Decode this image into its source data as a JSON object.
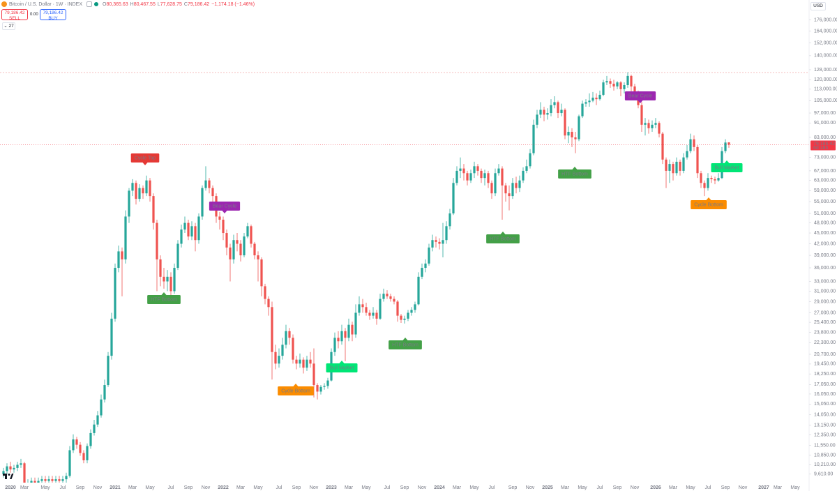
{
  "header": {
    "symbol": "Bitcoin / U.S. Dollar · 1W · INDEX",
    "ohlc": [
      {
        "key": "O",
        "value": "80,365.63"
      },
      {
        "key": "H",
        "value": "80,467.55"
      },
      {
        "key": "L",
        "value": "77,628.75"
      },
      {
        "key": "C",
        "value": "79,186.42"
      }
    ],
    "change": "−1,174.18 (−1.46%)"
  },
  "trade": {
    "sell_price": "79,186.42",
    "sell": "SELL",
    "spread": "0.00",
    "buy_price": "79,186.42",
    "buy": "BUY"
  },
  "indicators": "27",
  "currency": "USD",
  "chart_data": {
    "type": "candlestick",
    "log_scale": true,
    "grid": false,
    "up_color": "#26a69a",
    "down_color": "#ef5350",
    "last_price_label": "79,186.42",
    "countdown": "6d 18h",
    "ylim": [
      9100,
      200000
    ],
    "yticks": [
      {
        "value": 176000,
        "label": "176,000.00"
      },
      {
        "value": 164000,
        "label": "164,000.00"
      },
      {
        "value": 152000,
        "label": "152,000.00"
      },
      {
        "value": 140000,
        "label": "140,000.00"
      },
      {
        "value": 128000,
        "label": "128,000.00"
      },
      {
        "value": 120000,
        "label": "120,000.00"
      },
      {
        "value": 113000,
        "label": "113,000.00"
      },
      {
        "value": 105000,
        "label": "105,000.00"
      },
      {
        "value": 97000,
        "label": "97,000.00"
      },
      {
        "value": 91000,
        "label": "91,000.00"
      },
      {
        "value": 83000,
        "label": "83,000.00"
      },
      {
        "value": 73000,
        "label": "73,000.00"
      },
      {
        "value": 67000,
        "label": "67,000.00"
      },
      {
        "value": 63000,
        "label": "63,000.00"
      },
      {
        "value": 59000,
        "label": "59,000.00"
      },
      {
        "value": 55000,
        "label": "55,000.00"
      },
      {
        "value": 51000,
        "label": "51,000.00"
      },
      {
        "value": 48000,
        "label": "48,000.00"
      },
      {
        "value": 45000,
        "label": "45,000.00"
      },
      {
        "value": 42000,
        "label": "42,000.00"
      },
      {
        "value": 39000,
        "label": "39,000.00"
      },
      {
        "value": 36000,
        "label": "36,000.00"
      },
      {
        "value": 33000,
        "label": "33,000.00"
      },
      {
        "value": 31000,
        "label": "31,000.00"
      },
      {
        "value": 29000,
        "label": "29,000.00"
      },
      {
        "value": 27000,
        "label": "27,000.00"
      },
      {
        "value": 25400,
        "label": "25,400.00"
      },
      {
        "value": 23800,
        "label": "23,800.00"
      },
      {
        "value": 22300,
        "label": "22,300.00"
      },
      {
        "value": 20700,
        "label": "20,700.00"
      },
      {
        "value": 19450,
        "label": "19,450.00"
      },
      {
        "value": 18250,
        "label": "18,250.00"
      },
      {
        "value": 17050,
        "label": "17,050.00"
      },
      {
        "value": 16050,
        "label": "16,050.00"
      },
      {
        "value": 15050,
        "label": "15,050.00"
      },
      {
        "value": 14050,
        "label": "14,050.00"
      },
      {
        "value": 13150,
        "label": "13,150.00"
      },
      {
        "value": 12350,
        "label": "12,350.00"
      },
      {
        "value": 11550,
        "label": "11,550.00"
      },
      {
        "value": 10850,
        "label": "10,850.00"
      },
      {
        "value": 10210,
        "label": "10,210.00"
      },
      {
        "value": 9610,
        "label": "9,610.00"
      }
    ],
    "categories": [
      null,
      null,
      "2020",
      null,
      null,
      null,
      "Mar",
      null,
      null,
      null,
      null,
      null,
      "May",
      null,
      null,
      null,
      null,
      "Jul",
      null,
      null,
      null,
      null,
      "Sep",
      null,
      null,
      null,
      null,
      "Nov",
      null,
      null,
      null,
      null,
      "2021",
      null,
      null,
      null,
      null,
      "Mar",
      null,
      null,
      null,
      null,
      "May",
      null,
      null,
      null,
      null,
      null,
      "Jul",
      null,
      null,
      null,
      null,
      "Sep",
      null,
      null,
      null,
      null,
      "Nov",
      null,
      null,
      null,
      null,
      "2022",
      null,
      null,
      null,
      null,
      "Mar",
      null,
      null,
      null,
      null,
      "May",
      null,
      null,
      null,
      null,
      null,
      "Jul",
      null,
      null,
      null,
      null,
      "Sep",
      null,
      null,
      null,
      null,
      "Nov",
      null,
      null,
      null,
      null,
      "2023",
      null,
      null,
      null,
      null,
      "Mar",
      null,
      null,
      null,
      null,
      "May",
      null,
      null,
      null,
      null,
      null,
      "Jul",
      null,
      null,
      null,
      null,
      "Sep",
      null,
      null,
      null,
      null,
      "Nov",
      null,
      null,
      null,
      null,
      "2024",
      null,
      null,
      null,
      null,
      "Mar",
      null,
      null,
      null,
      null,
      "May",
      null,
      null,
      null,
      null,
      "Jul",
      null,
      null,
      null,
      null,
      null,
      "Sep",
      null,
      null,
      null,
      null,
      "Nov",
      null,
      null,
      null,
      null,
      "2025",
      null,
      null,
      null,
      null,
      "Mar",
      null,
      null,
      null,
      null,
      "May",
      null,
      null,
      null,
      null,
      "Jul",
      null,
      null,
      null,
      null,
      "Sep",
      null,
      null,
      null,
      null,
      "Nov",
      null,
      null,
      null,
      null,
      null,
      "2026",
      null,
      null,
      null,
      null,
      "Mar",
      null,
      null,
      null,
      null,
      "May",
      null,
      null,
      null,
      null,
      "Jul",
      null,
      null,
      null,
      null,
      "Sep",
      null,
      null,
      null,
      null,
      "Nov",
      null,
      null,
      null,
      null,
      null,
      "2027",
      null,
      null,
      null,
      "Mar",
      null,
      null,
      null,
      null,
      "May",
      null
    ],
    "open": [
      9600,
      9800,
      10100,
      9900,
      10000,
      10200,
      10300,
      9000,
      9100,
      9200,
      9100,
      9200,
      9300,
      9200,
      9300,
      9200,
      9300,
      9200,
      9300,
      9500,
      11200,
      12000,
      11600,
      11000,
      10500,
      11500,
      12500,
      13200,
      14000,
      15500,
      17000,
      20500,
      26000,
      36000,
      40000,
      38000,
      50000,
      59000,
      62000,
      56000,
      60000,
      58000,
      63000,
      57000,
      48000,
      38000,
      34000,
      33000,
      34000,
      31000,
      36000,
      42000,
      46000,
      48000,
      44000,
      47000,
      43000,
      50000,
      60000,
      63000,
      60000,
      57000,
      50000,
      49000,
      45000,
      41000,
      38000,
      43000,
      42000,
      39000,
      44000,
      47000,
      42000,
      39000,
      38000,
      32000,
      29500,
      28000,
      21000,
      19500,
      20500,
      22000,
      24000,
      23000,
      20000,
      19500,
      20000,
      19000,
      20000,
      19500,
      17000,
      16300,
      16800,
      16900,
      17500,
      21000,
      23000,
      22500,
      24000,
      23000,
      25000,
      23500,
      27000,
      28500,
      28000,
      27000,
      26500,
      27000,
      26000,
      29500,
      30500,
      30000,
      29500,
      29000,
      26500,
      25800,
      26000,
      27000,
      27500,
      28500,
      34000,
      36000,
      37000,
      41000,
      43000,
      42500,
      42000,
      43000,
      47000,
      51000,
      62000,
      67000,
      68000,
      66000,
      63000,
      66000,
      69000,
      67000,
      64000,
      66000,
      62000,
      58000,
      66000,
      68000,
      61000,
      58000,
      57000,
      62000,
      60000,
      63000,
      67000,
      69000,
      75000,
      90000,
      96000,
      99000,
      96000,
      97000,
      102000,
      104000,
      97000,
      99000,
      84000,
      86000,
      83000,
      82000,
      95000,
      103000,
      104000,
      105000,
      107000,
      106000,
      109000,
      118000,
      119000,
      117000,
      115000,
      118000,
      113000,
      116000,
      123000,
      115000,
      110000,
      102000,
      90000,
      91000,
      88000,
      90000,
      91000,
      85000,
      72000,
      67000,
      70000,
      66000,
      71000,
      67000,
      73000,
      76000,
      82000,
      78000,
      66000,
      62000,
      60000,
      64000,
      63500,
      63000,
      64000,
      76000,
      80365.63,
      null,
      null,
      null,
      null,
      null,
      null,
      null,
      null,
      null,
      null,
      null,
      null,
      null,
      null,
      null,
      null,
      null,
      null,
      null,
      null
    ],
    "high": [
      10000,
      10300,
      10400,
      10200,
      10400,
      10600,
      10400,
      9300,
      9400,
      9400,
      9400,
      9500,
      9500,
      9500,
      9500,
      9500,
      9500,
      9500,
      9700,
      11500,
      12400,
      12200,
      11800,
      11200,
      11700,
      12800,
      13600,
      14400,
      16000,
      17600,
      21000,
      27000,
      37000,
      41500,
      41000,
      52000,
      60000,
      63500,
      63000,
      61500,
      61000,
      65000,
      64000,
      58000,
      49000,
      39000,
      36000,
      35500,
      35000,
      37000,
      43000,
      47500,
      50000,
      49000,
      48500,
      48000,
      51000,
      61000,
      69000,
      64000,
      61000,
      58000,
      51500,
      50000,
      46000,
      42000,
      44500,
      45000,
      43000,
      45000,
      48000,
      47500,
      42500,
      40000,
      38500,
      32500,
      30000,
      29000,
      22000,
      21500,
      23000,
      25000,
      24500,
      23500,
      20500,
      20800,
      20300,
      20500,
      21000,
      21500,
      17200,
      17000,
      17200,
      17800,
      21500,
      23800,
      24000,
      25000,
      24500,
      26000,
      25500,
      28500,
      30000,
      29500,
      28800,
      27500,
      28000,
      27500,
      30500,
      31500,
      31200,
      30500,
      30000,
      29300,
      26800,
      26500,
      27500,
      28000,
      29000,
      35000,
      37000,
      38000,
      42000,
      44500,
      44000,
      43500,
      48000,
      48500,
      52500,
      64000,
      69000,
      73000,
      70000,
      67000,
      67500,
      71000,
      70000,
      68000,
      67500,
      67000,
      63000,
      68000,
      70000,
      69000,
      62000,
      61000,
      64000,
      64500,
      65000,
      68500,
      72000,
      77000,
      93000,
      99000,
      104000,
      101000,
      100000,
      106000,
      108000,
      105000,
      103000,
      100000,
      89000,
      88000,
      86000,
      96000,
      105000,
      106000,
      110000,
      111000,
      110000,
      112000,
      120000,
      123000,
      121000,
      120000,
      119000,
      119000,
      118000,
      126000,
      124000,
      117000,
      112000,
      104000,
      94000,
      93000,
      92500,
      94000,
      92000,
      86000,
      73000,
      72000,
      71000,
      73000,
      72000,
      75000,
      79000,
      85000,
      84000,
      79000,
      67000,
      63000,
      66000,
      65000,
      64500,
      66000,
      78000,
      82000,
      80467.55,
      null,
      null,
      null,
      null,
      null,
      null,
      null,
      null,
      null,
      null,
      null,
      null,
      null,
      null,
      null,
      null,
      null,
      null,
      null,
      null
    ],
    "low": [
      9400,
      9600,
      9700,
      9700,
      9800,
      10000,
      8800,
      8800,
      8900,
      8900,
      8900,
      9000,
      9000,
      9000,
      9000,
      9000,
      9000,
      9000,
      9100,
      9400,
      11000,
      11300,
      10800,
      10300,
      10300,
      11300,
      12300,
      13000,
      13800,
      15200,
      16800,
      20000,
      25500,
      35000,
      30000,
      37000,
      48000,
      57000,
      54000,
      55000,
      56000,
      57000,
      55000,
      46000,
      31000,
      32000,
      31500,
      31000,
      29500,
      30500,
      35500,
      41000,
      45000,
      43000,
      43000,
      40000,
      42000,
      49000,
      59000,
      58000,
      53000,
      48000,
      46000,
      43000,
      39000,
      33000,
      37000,
      40000,
      37500,
      38500,
      43500,
      41000,
      38000,
      33000,
      30000,
      28500,
      26500,
      17600,
      18800,
      19000,
      20000,
      21500,
      22000,
      19500,
      18800,
      19000,
      18300,
      18600,
      19000,
      15700,
      15500,
      16000,
      16500,
      16600,
      17400,
      20500,
      21500,
      22000,
      19800,
      22500,
      22500,
      23000,
      26500,
      27000,
      26500,
      25800,
      26000,
      25000,
      25800,
      29000,
      29500,
      29000,
      28500,
      25500,
      25300,
      25200,
      25600,
      26500,
      27000,
      28300,
      33500,
      35000,
      36500,
      40000,
      41000,
      40500,
      38500,
      42000,
      46000,
      50500,
      61000,
      64000,
      63000,
      61000,
      62000,
      64000,
      65000,
      62000,
      61000,
      60000,
      56000,
      57000,
      65000,
      49000,
      55000,
      52000,
      56000,
      58000,
      58500,
      62000,
      66000,
      68000,
      74000,
      88000,
      94000,
      92000,
      93000,
      95000,
      100000,
      94000,
      95000,
      82000,
      80000,
      78000,
      75000,
      81000,
      94000,
      101000,
      101000,
      104000,
      102000,
      105000,
      108000,
      116000,
      114000,
      112000,
      113000,
      108000,
      110000,
      114000,
      110000,
      107000,
      100000,
      86000,
      84000,
      85000,
      86000,
      88000,
      83000,
      70000,
      60000,
      62000,
      63000,
      65000,
      65000,
      66000,
      72000,
      75000,
      76000,
      64000,
      60000,
      57000,
      59000,
      62000,
      61500,
      62500,
      63500,
      75000,
      77628.75,
      null,
      null,
      null,
      null,
      null,
      null,
      null,
      null,
      null,
      null,
      null,
      null,
      null,
      null,
      null,
      null,
      null,
      null,
      null,
      null
    ],
    "close": [
      9800,
      10100,
      9900,
      10000,
      10200,
      10300,
      9000,
      9100,
      9200,
      9100,
      9200,
      9300,
      9200,
      9300,
      9200,
      9300,
      9200,
      9300,
      9500,
      11200,
      12000,
      11600,
      11000,
      10500,
      11500,
      12500,
      13200,
      14000,
      15500,
      17000,
      20500,
      26000,
      36000,
      40000,
      38000,
      50000,
      59000,
      62000,
      56000,
      60000,
      58000,
      63000,
      57000,
      48000,
      38000,
      34000,
      33000,
      34000,
      31000,
      36000,
      42000,
      46000,
      48000,
      44000,
      47000,
      43000,
      50000,
      60000,
      63000,
      60000,
      57000,
      50000,
      49000,
      45000,
      41000,
      38000,
      43000,
      42000,
      39000,
      44000,
      47000,
      42000,
      39000,
      38000,
      32000,
      29500,
      28000,
      21000,
      19500,
      20500,
      22000,
      24000,
      23000,
      20000,
      19500,
      20000,
      19000,
      20000,
      19500,
      17000,
      16300,
      16800,
      16900,
      17500,
      21000,
      23000,
      22500,
      24000,
      23000,
      25000,
      23500,
      27000,
      28500,
      28000,
      27000,
      26500,
      27000,
      26000,
      29500,
      30500,
      30000,
      29500,
      29000,
      26500,
      25800,
      26000,
      27000,
      27500,
      28500,
      34000,
      36000,
      37000,
      41000,
      43000,
      42500,
      42000,
      43000,
      47000,
      51000,
      62000,
      67000,
      68000,
      66000,
      63000,
      66000,
      69000,
      67000,
      64000,
      66000,
      62000,
      58000,
      66000,
      68000,
      61000,
      58000,
      57000,
      62000,
      60000,
      63000,
      67000,
      69000,
      75000,
      90000,
      96000,
      99000,
      96000,
      97000,
      102000,
      104000,
      97000,
      99000,
      84000,
      86000,
      83000,
      82000,
      95000,
      103000,
      104000,
      105000,
      107000,
      106000,
      109000,
      118000,
      119000,
      117000,
      115000,
      118000,
      113000,
      116000,
      123000,
      115000,
      110000,
      102000,
      90000,
      91000,
      88000,
      90000,
      91000,
      85000,
      72000,
      67000,
      70000,
      66000,
      71000,
      67000,
      73000,
      76000,
      82000,
      78000,
      66000,
      62000,
      60000,
      64000,
      63500,
      63000,
      64000,
      76000,
      80300,
      79186.42,
      null,
      null,
      null,
      null,
      null,
      null,
      null,
      null,
      null,
      null,
      null,
      null,
      null,
      null,
      null,
      null,
      null,
      null,
      null,
      null
    ],
    "annotations": [
      {
        "text": "Cycle Top",
        "color": "#e53935"
      },
      {
        "text": "HTF Bottom",
        "color": "#43a047"
      },
      {
        "text": "Bear Cycle",
        "color": "#9c27b0"
      },
      {
        "text": "Cycle Bottom",
        "color": "#fb8c00"
      },
      {
        "text": "Bull Market",
        "color": "#00e676"
      },
      {
        "text": "HTF Bottom",
        "color": "#43a047"
      },
      {
        "text": "HTF Bottom",
        "color": "#43a047"
      },
      {
        "text": "HTF Bottom",
        "color": "#43a047"
      },
      {
        "text": "Bear Cycle",
        "color": "#9c27b0"
      },
      {
        "text": "Cycle Bottom",
        "color": "#fb8c00"
      },
      {
        "text": "Bull Market",
        "color": "#00e676"
      }
    ]
  }
}
